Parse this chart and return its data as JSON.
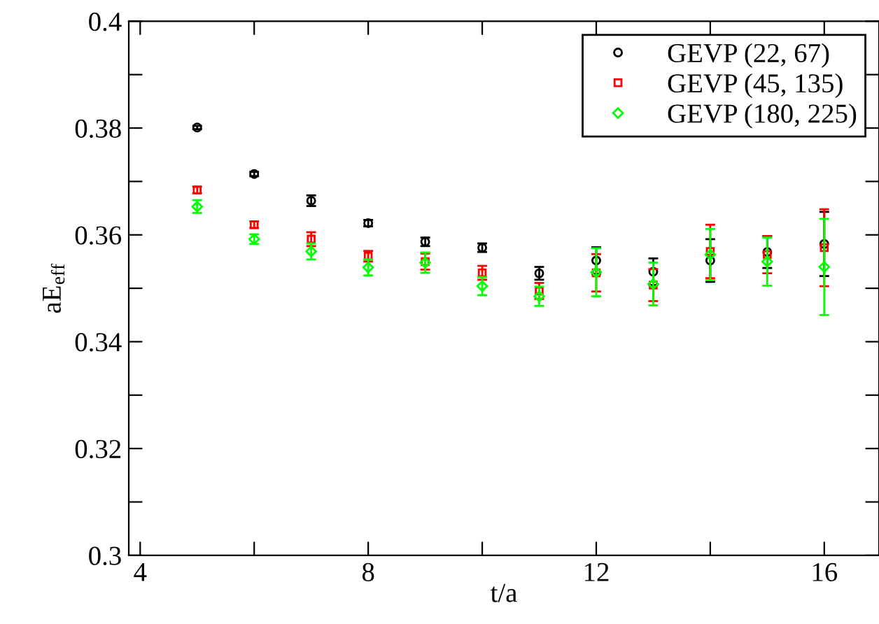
{
  "chart_data": {
    "type": "scatter",
    "xlabel": "t/a",
    "ylabel": "aE$_{eff}$",
    "x": [
      5,
      6,
      7,
      8,
      9,
      10,
      11,
      12,
      13,
      14,
      15,
      16
    ],
    "series": [
      {
        "name": "GEVP (22, 67)",
        "color": "#000000",
        "marker": "circle",
        "values": [
          0.3801,
          0.3714,
          0.3664,
          0.3622,
          0.3587,
          0.3576,
          0.3528,
          0.3552,
          0.3531,
          0.3552,
          0.3568,
          0.3583
        ],
        "errors": [
          0.0003,
          0.0004,
          0.001,
          0.0006,
          0.0008,
          0.0008,
          0.0012,
          0.0025,
          0.0025,
          0.004,
          0.003,
          0.006
        ]
      },
      {
        "name": "GEVP (45, 135)",
        "color": "#ff0000",
        "marker": "square",
        "values": [
          0.3684,
          0.3619,
          0.3592,
          0.356,
          0.355,
          0.3529,
          0.3495,
          0.3529,
          0.3506,
          0.3569,
          0.3563,
          0.3576
        ],
        "errors": [
          0.0006,
          0.0006,
          0.0013,
          0.001,
          0.0015,
          0.0013,
          0.0015,
          0.0035,
          0.003,
          0.005,
          0.0035,
          0.0072
        ]
      },
      {
        "name": "GEVP (180, 225)",
        "color": "#00ff00",
        "marker": "diamond",
        "values": [
          0.3653,
          0.3592,
          0.3569,
          0.3539,
          0.3548,
          0.3504,
          0.3485,
          0.353,
          0.3508,
          0.3563,
          0.355,
          0.354
        ],
        "errors": [
          0.0012,
          0.0009,
          0.0015,
          0.0015,
          0.0019,
          0.0017,
          0.0018,
          0.0045,
          0.004,
          0.0048,
          0.0045,
          0.009
        ]
      }
    ],
    "xlim": [
      3.8,
      16.96
    ],
    "ylim": [
      0.3,
      0.4
    ],
    "xticks": [
      4,
      {
        "value": 6,
        "label": null
      },
      8,
      {
        "value": 10,
        "label": null
      },
      12,
      {
        "value": 14,
        "label": null
      },
      16
    ],
    "yticks": [
      0.3,
      {
        "value": 0.31,
        "label": null
      },
      0.32,
      {
        "value": 0.33,
        "label": null
      },
      0.34,
      {
        "value": 0.35,
        "label": null
      },
      0.36,
      {
        "value": 0.37,
        "label": null
      },
      0.38,
      {
        "value": 0.39,
        "label": null
      },
      0.4
    ],
    "grid": false,
    "legend": "top right"
  }
}
